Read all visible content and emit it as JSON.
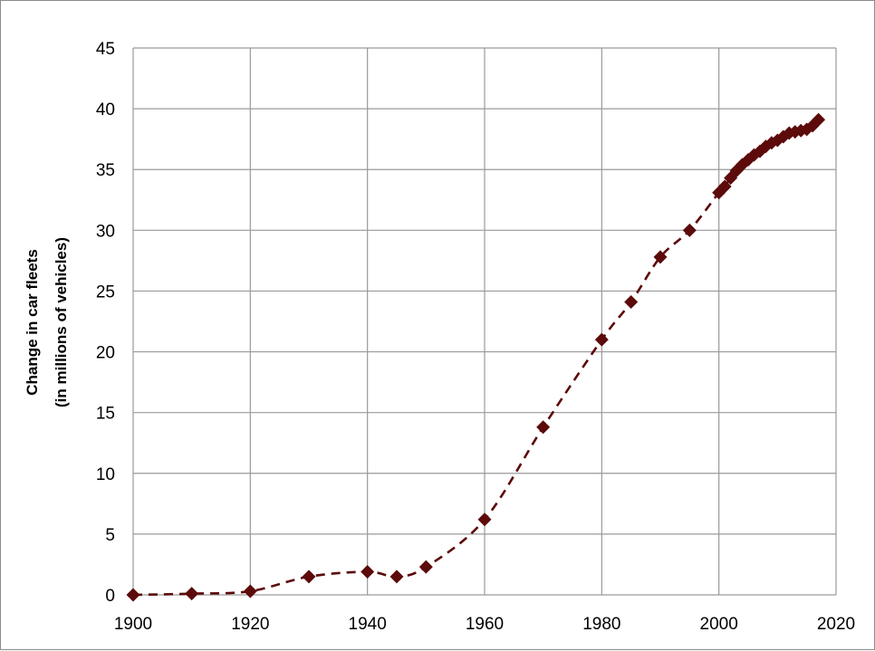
{
  "chart_data": {
    "type": "line",
    "title": "",
    "xlabel": "",
    "ylabel": [
      "Change in car fleets",
      "(in millions of vehicles)"
    ],
    "xlim": [
      1900,
      2020
    ],
    "ylim": [
      0,
      45
    ],
    "x_ticks": [
      1900,
      1920,
      1940,
      1960,
      1980,
      2000,
      2020
    ],
    "y_ticks": [
      0,
      5,
      10,
      15,
      20,
      25,
      30,
      35,
      40,
      45
    ],
    "grid": true,
    "legend": "none",
    "series": [
      {
        "color": "#5c0a0a",
        "line_style": "dashed",
        "marker": "diamond",
        "points": [
          [
            1900,
            0.0
          ],
          [
            1910,
            0.1
          ],
          [
            1920,
            0.3
          ],
          [
            1930,
            1.5
          ],
          [
            1940,
            1.9
          ],
          [
            1945,
            1.5
          ],
          [
            1950,
            2.3
          ],
          [
            1960,
            6.2
          ],
          [
            1970,
            13.8
          ],
          [
            1980,
            21.0
          ],
          [
            1985,
            24.1
          ],
          [
            1990,
            27.8
          ],
          [
            1995,
            30.0
          ],
          [
            2000,
            33.1
          ],
          [
            2001,
            33.6
          ],
          [
            2002,
            34.3
          ],
          [
            2003,
            34.9
          ],
          [
            2004,
            35.4
          ],
          [
            2005,
            35.8
          ],
          [
            2006,
            36.2
          ],
          [
            2007,
            36.5
          ],
          [
            2008,
            36.9
          ],
          [
            2009,
            37.2
          ],
          [
            2010,
            37.4
          ],
          [
            2011,
            37.7
          ],
          [
            2012,
            38.0
          ],
          [
            2013,
            38.1
          ],
          [
            2014,
            38.2
          ],
          [
            2015,
            38.3
          ],
          [
            2016,
            38.6
          ],
          [
            2017,
            39.1
          ]
        ]
      }
    ]
  }
}
